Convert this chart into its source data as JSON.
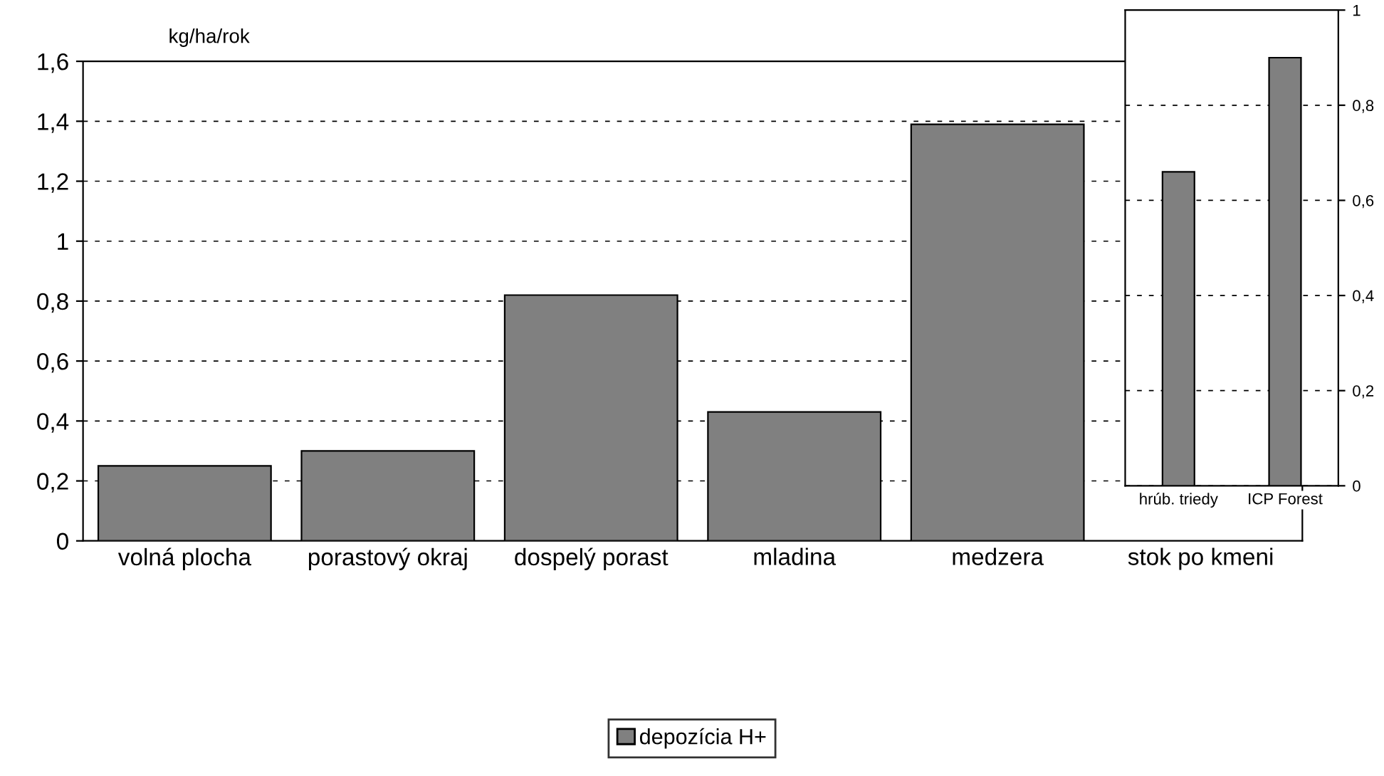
{
  "chart_data": [
    {
      "type": "bar",
      "ylabel": "kg/ha/rok",
      "categories": [
        "volná plocha",
        "porastový okraj",
        "dospelý porast",
        "mladina",
        "medzera",
        "stok po kmeni"
      ],
      "series": [
        {
          "name": "depozícia H+",
          "color": "#808080",
          "values": [
            0.25,
            0.3,
            0.82,
            0.43,
            1.39,
            null
          ]
        }
      ],
      "ylim": [
        0,
        1.6
      ],
      "yticks": [
        0,
        {
          "value": 0.2,
          "label": "0,2"
        },
        {
          "value": 0.4,
          "label": "0,4"
        },
        {
          "value": 0.6,
          "label": "0,6"
        },
        {
          "value": 0.8,
          "label": "0,8"
        },
        1,
        {
          "value": 1.2,
          "label": "1,2"
        },
        {
          "value": 1.4,
          "label": "1,4"
        },
        {
          "value": 1.6,
          "label": "1,6"
        }
      ],
      "grid": "y",
      "legend": "bottom"
    },
    {
      "type": "bar",
      "categories": [
        "hrúb. triedy",
        "ICP Forest"
      ],
      "series": [
        {
          "color": "#808080",
          "values": [
            0.66,
            0.9
          ],
          "axis": "y2"
        }
      ],
      "y2lim": [
        0,
        1
      ],
      "y2ticks": [
        0,
        {
          "value": 0.2,
          "label": "0,2"
        },
        {
          "value": 0.4,
          "label": "0,4"
        },
        {
          "value": 0.6,
          "label": "0,6"
        },
        {
          "value": 0.8,
          "label": "0,8"
        },
        1
      ],
      "grid": "y"
    }
  ]
}
